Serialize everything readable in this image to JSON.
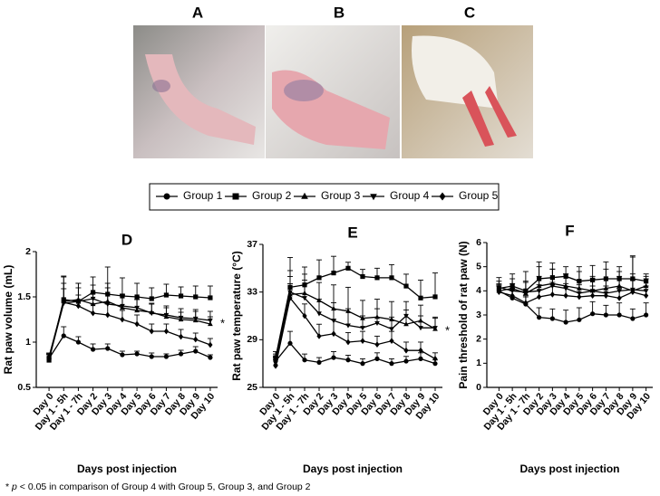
{
  "panels": [
    "A",
    "B",
    "C"
  ],
  "footnote": {
    "prefix": "* ",
    "italic": "p",
    "text": " < 0.05 in comparison of Group 4 with Group 5, Group 3, and Group 2"
  },
  "chart_data": [
    {
      "type": "line",
      "title": "D",
      "ylabel": "Rat paw volume (mL)",
      "xlabel": "Days post injection",
      "annotation": "*",
      "categories": [
        "Day 0",
        "Day 1 - 5h",
        "Day 1 - 7h",
        "Day 2",
        "Day 3",
        "Day 4",
        "Day 5",
        "Day 6",
        "Day 7",
        "Day 8",
        "Day 9",
        "Day 10"
      ],
      "ylim": [
        0.5,
        2.0
      ],
      "yticks": [
        0.5,
        1.0,
        1.5,
        2.0
      ],
      "series": [
        {
          "name": "Group 1",
          "color": "#000000",
          "marker": "circle",
          "values": [
            0.82,
            1.07,
            1.0,
            0.92,
            0.93,
            0.86,
            0.87,
            0.84,
            0.84,
            0.87,
            0.9,
            0.83
          ],
          "errors": [
            0.05,
            0.1,
            0.06,
            0.06,
            0.05,
            0.04,
            0.03,
            0.04,
            0.03,
            0.04,
            0.05,
            0.03
          ]
        },
        {
          "name": "Group 2",
          "color": "#000000",
          "marker": "square",
          "values": [
            0.8,
            1.47,
            1.45,
            1.55,
            1.53,
            1.51,
            1.5,
            1.48,
            1.52,
            1.51,
            1.5,
            1.49
          ],
          "errors": [
            0.04,
            0.25,
            0.2,
            0.17,
            0.3,
            0.2,
            0.15,
            0.12,
            0.12,
            0.1,
            0.12,
            0.13
          ]
        },
        {
          "name": "Group 3",
          "color": "#000000",
          "marker": "triangle-up",
          "values": [
            0.83,
            1.45,
            1.47,
            1.42,
            1.45,
            1.38,
            1.35,
            1.33,
            1.28,
            1.25,
            1.24,
            1.2
          ],
          "errors": [
            0.04,
            0.2,
            0.18,
            0.12,
            0.2,
            0.15,
            0.12,
            0.1,
            0.1,
            0.08,
            0.1,
            0.08
          ]
        },
        {
          "name": "Group 4",
          "color": "#000000",
          "marker": "triangle-down",
          "values": [
            0.81,
            1.43,
            1.45,
            1.48,
            1.42,
            1.4,
            1.38,
            1.32,
            1.3,
            1.27,
            1.26,
            1.24
          ],
          "errors": [
            0.05,
            0.3,
            0.15,
            0.15,
            0.18,
            0.12,
            0.12,
            0.1,
            0.1,
            0.1,
            0.1,
            0.1
          ]
        },
        {
          "name": "Group 5",
          "color": "#000000",
          "marker": "diamond",
          "values": [
            0.84,
            1.44,
            1.4,
            1.32,
            1.3,
            1.25,
            1.2,
            1.12,
            1.12,
            1.06,
            1.03,
            0.97
          ],
          "errors": [
            0.04,
            0.15,
            0.12,
            0.1,
            0.12,
            0.1,
            0.1,
            0.08,
            0.08,
            0.08,
            0.07,
            0.07
          ]
        }
      ]
    },
    {
      "type": "line",
      "title": "E",
      "ylabel": "Rat paw temperature (°C)",
      "xlabel": "Days post injection",
      "annotation": "*",
      "categories": [
        "Day 0",
        "Day 1 - 5h",
        "Day 1 - 7h",
        "Day 2",
        "Day 3",
        "Day 4",
        "Day 5",
        "Day 6",
        "Day 7",
        "Day 8",
        "Day 9",
        "Day 10"
      ],
      "ylim": [
        25,
        37
      ],
      "yticks": [
        25,
        29,
        33,
        37
      ],
      "series": [
        {
          "color": "#000000",
          "marker": "circle",
          "values": [
            27.2,
            28.7,
            27.3,
            27.1,
            27.5,
            27.3,
            27.0,
            27.4,
            27.0,
            27.2,
            27.4,
            27.0
          ],
          "errors": [
            0.4,
            1.0,
            0.5,
            0.4,
            0.5,
            0.4,
            0.4,
            0.5,
            0.4,
            0.4,
            0.5,
            0.3
          ]
        },
        {
          "color": "#000000",
          "marker": "square",
          "values": [
            27.5,
            33.4,
            33.6,
            34.2,
            34.6,
            35.0,
            34.3,
            34.2,
            34.2,
            33.5,
            32.5,
            32.6
          ],
          "errors": [
            0.5,
            2.5,
            1.5,
            1.5,
            1.4,
            0.5,
            0.6,
            0.8,
            1.1,
            1.0,
            1.5,
            2.0
          ]
        },
        {
          "color": "#000000",
          "marker": "triangle-up",
          "values": [
            27.0,
            32.8,
            32.9,
            32.3,
            31.6,
            31.4,
            30.8,
            30.9,
            30.7,
            30.3,
            30.6,
            29.9
          ],
          "errors": [
            0.5,
            1.5,
            1.6,
            1.5,
            2.0,
            2.0,
            1.5,
            1.5,
            1.5,
            1.2,
            1.3,
            1.0
          ]
        },
        {
          "color": "#000000",
          "marker": "triangle-down",
          "values": [
            27.3,
            33.0,
            32.5,
            31.2,
            30.6,
            30.2,
            30.0,
            30.4,
            29.9,
            31.0,
            30.0,
            30.0
          ],
          "errors": [
            0.5,
            1.8,
            1.5,
            1.2,
            1.5,
            1.4,
            1.0,
            1.2,
            1.0,
            1.2,
            1.0,
            0.8
          ]
        },
        {
          "color": "#000000",
          "marker": "diamond",
          "values": [
            26.8,
            32.5,
            31.0,
            29.3,
            29.5,
            28.8,
            28.9,
            28.6,
            28.9,
            28.1,
            28.1,
            27.4
          ],
          "errors": [
            0.5,
            1.2,
            1.0,
            1.0,
            1.2,
            0.8,
            0.8,
            0.7,
            0.8,
            0.7,
            0.7,
            0.5
          ]
        }
      ]
    },
    {
      "type": "line",
      "title": "F",
      "ylabel": "Pain threshold of rat paw (N)",
      "xlabel": "Days post injection",
      "categories": [
        "Day 0",
        "Day 1 - 5h",
        "Day 1 - 7h",
        "Day 2",
        "Day 3",
        "Day 4",
        "Day 5",
        "Day 6",
        "Day 7",
        "Day 8",
        "Day 9",
        "Day 10"
      ],
      "ylim": [
        0,
        6
      ],
      "yticks": [
        0,
        1,
        2,
        3,
        4,
        5,
        6
      ],
      "series": [
        {
          "color": "#000000",
          "marker": "circle",
          "values": [
            4.0,
            3.7,
            3.45,
            2.9,
            2.85,
            2.7,
            2.8,
            3.05,
            3.0,
            3.0,
            2.85,
            3.0
          ],
          "errors": [
            0.2,
            0.3,
            0.3,
            0.4,
            0.4,
            0.5,
            0.5,
            0.5,
            0.4,
            0.5,
            0.4,
            0.5
          ]
        },
        {
          "color": "#000000",
          "marker": "square",
          "values": [
            4.1,
            4.2,
            4.0,
            4.5,
            4.55,
            4.6,
            4.4,
            4.45,
            4.5,
            4.5,
            4.5,
            4.4
          ],
          "errors": [
            0.3,
            0.5,
            0.8,
            0.7,
            0.6,
            0.4,
            0.6,
            0.6,
            0.7,
            0.5,
            0.9,
            0.3
          ]
        },
        {
          "color": "#000000",
          "marker": "triangle-up",
          "values": [
            4.0,
            4.1,
            3.9,
            4.2,
            4.3,
            4.2,
            4.1,
            4.0,
            4.1,
            4.2,
            4.0,
            4.2
          ],
          "errors": [
            0.3,
            0.4,
            0.5,
            0.8,
            0.6,
            0.5,
            0.7,
            0.6,
            0.8,
            0.6,
            0.7,
            0.4
          ]
        },
        {
          "color": "#000000",
          "marker": "triangle-down",
          "values": [
            4.15,
            4.0,
            3.95,
            4.0,
            4.2,
            4.1,
            3.9,
            4.0,
            3.9,
            4.0,
            4.05,
            4.0
          ],
          "errors": [
            0.4,
            0.3,
            0.4,
            0.6,
            0.7,
            0.6,
            0.5,
            0.5,
            0.6,
            0.6,
            1.4,
            0.5
          ]
        },
        {
          "color": "#000000",
          "marker": "diamond",
          "values": [
            3.95,
            3.8,
            3.5,
            3.75,
            3.85,
            3.8,
            3.75,
            3.8,
            3.8,
            3.7,
            3.95,
            3.8
          ],
          "errors": [
            0.3,
            0.3,
            0.3,
            0.5,
            0.5,
            0.5,
            0.5,
            0.4,
            0.4,
            0.4,
            0.5,
            0.4
          ]
        }
      ]
    }
  ]
}
